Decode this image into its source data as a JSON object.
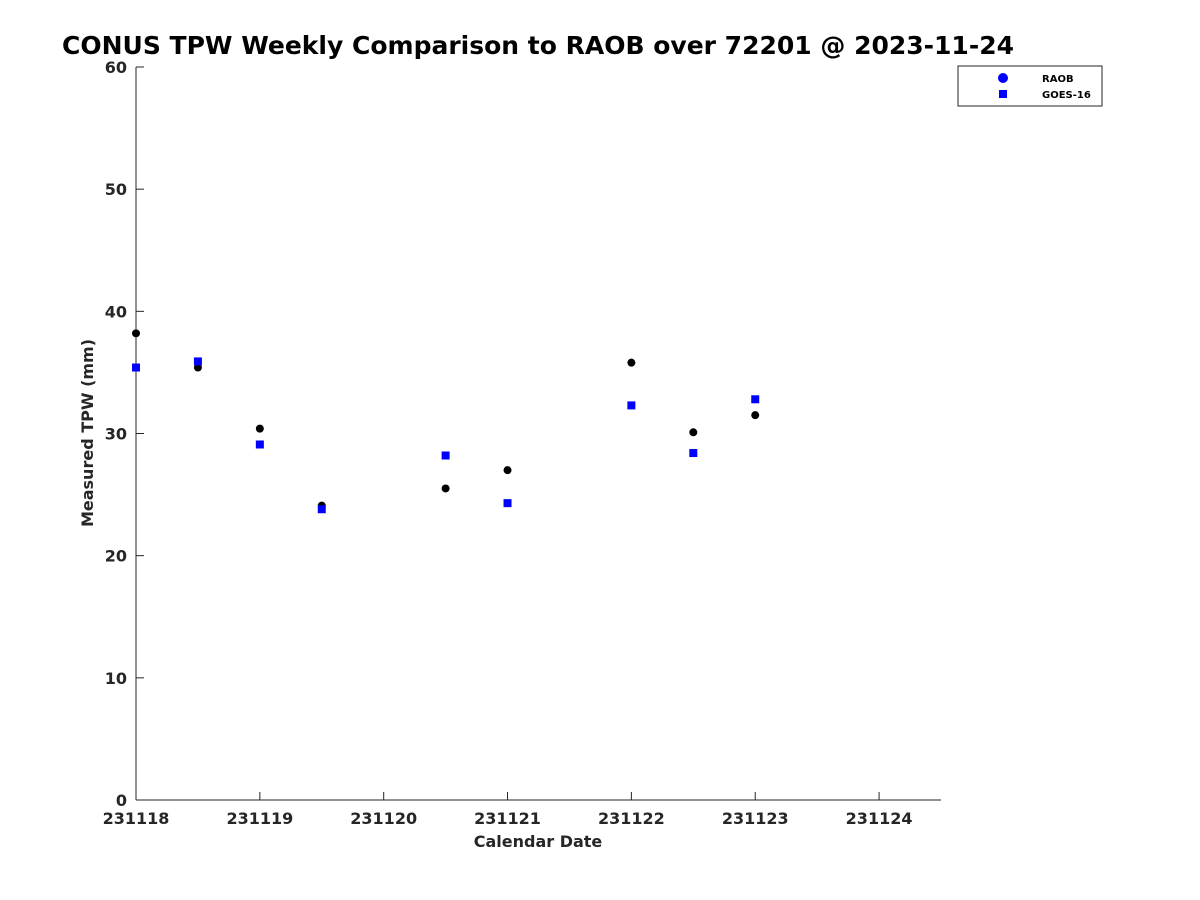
{
  "chart_data": {
    "type": "scatter",
    "title": "CONUS TPW Weekly Comparison to RAOB over 72201 @ 2023-11-24",
    "xlabel": "Calendar Date",
    "ylabel": "Measured TPW (mm)",
    "x_ticks": [
      "231118",
      "231119",
      "231120",
      "231121",
      "231122",
      "231123",
      "231124"
    ],
    "xlim": [
      "2023-11-18 00:00",
      "2023-11-24 12:00"
    ],
    "ylim": [
      0,
      60
    ],
    "y_ticks": [
      0,
      10,
      20,
      30,
      40,
      50,
      60
    ],
    "grid": false,
    "legend_position": "top-right",
    "series": [
      {
        "name": "RAOB",
        "marker": "circle",
        "color": "#000000",
        "legend_color": "#0000ff",
        "points": [
          {
            "x": "2023-11-18 00:00",
            "y": 38.2
          },
          {
            "x": "2023-11-18 12:00",
            "y": 35.4
          },
          {
            "x": "2023-11-19 00:00",
            "y": 30.4
          },
          {
            "x": "2023-11-19 12:00",
            "y": 24.1
          },
          {
            "x": "2023-11-20 12:00",
            "y": 25.5
          },
          {
            "x": "2023-11-21 00:00",
            "y": 27.0
          },
          {
            "x": "2023-11-22 00:00",
            "y": 35.8
          },
          {
            "x": "2023-11-22 12:00",
            "y": 30.1
          },
          {
            "x": "2023-11-23 00:00",
            "y": 31.5
          }
        ]
      },
      {
        "name": "GOES-16",
        "marker": "square",
        "color": "#0000ff",
        "legend_color": "#0000ff",
        "points": [
          {
            "x": "2023-11-18 00:00",
            "y": 35.4
          },
          {
            "x": "2023-11-18 12:00",
            "y": 35.9
          },
          {
            "x": "2023-11-19 00:00",
            "y": 29.1
          },
          {
            "x": "2023-11-19 12:00",
            "y": 23.8
          },
          {
            "x": "2023-11-20 12:00",
            "y": 28.2
          },
          {
            "x": "2023-11-21 00:00",
            "y": 24.3
          },
          {
            "x": "2023-11-22 00:00",
            "y": 32.3
          },
          {
            "x": "2023-11-22 12:00",
            "y": 28.4
          },
          {
            "x": "2023-11-23 00:00",
            "y": 32.8
          }
        ]
      }
    ]
  }
}
